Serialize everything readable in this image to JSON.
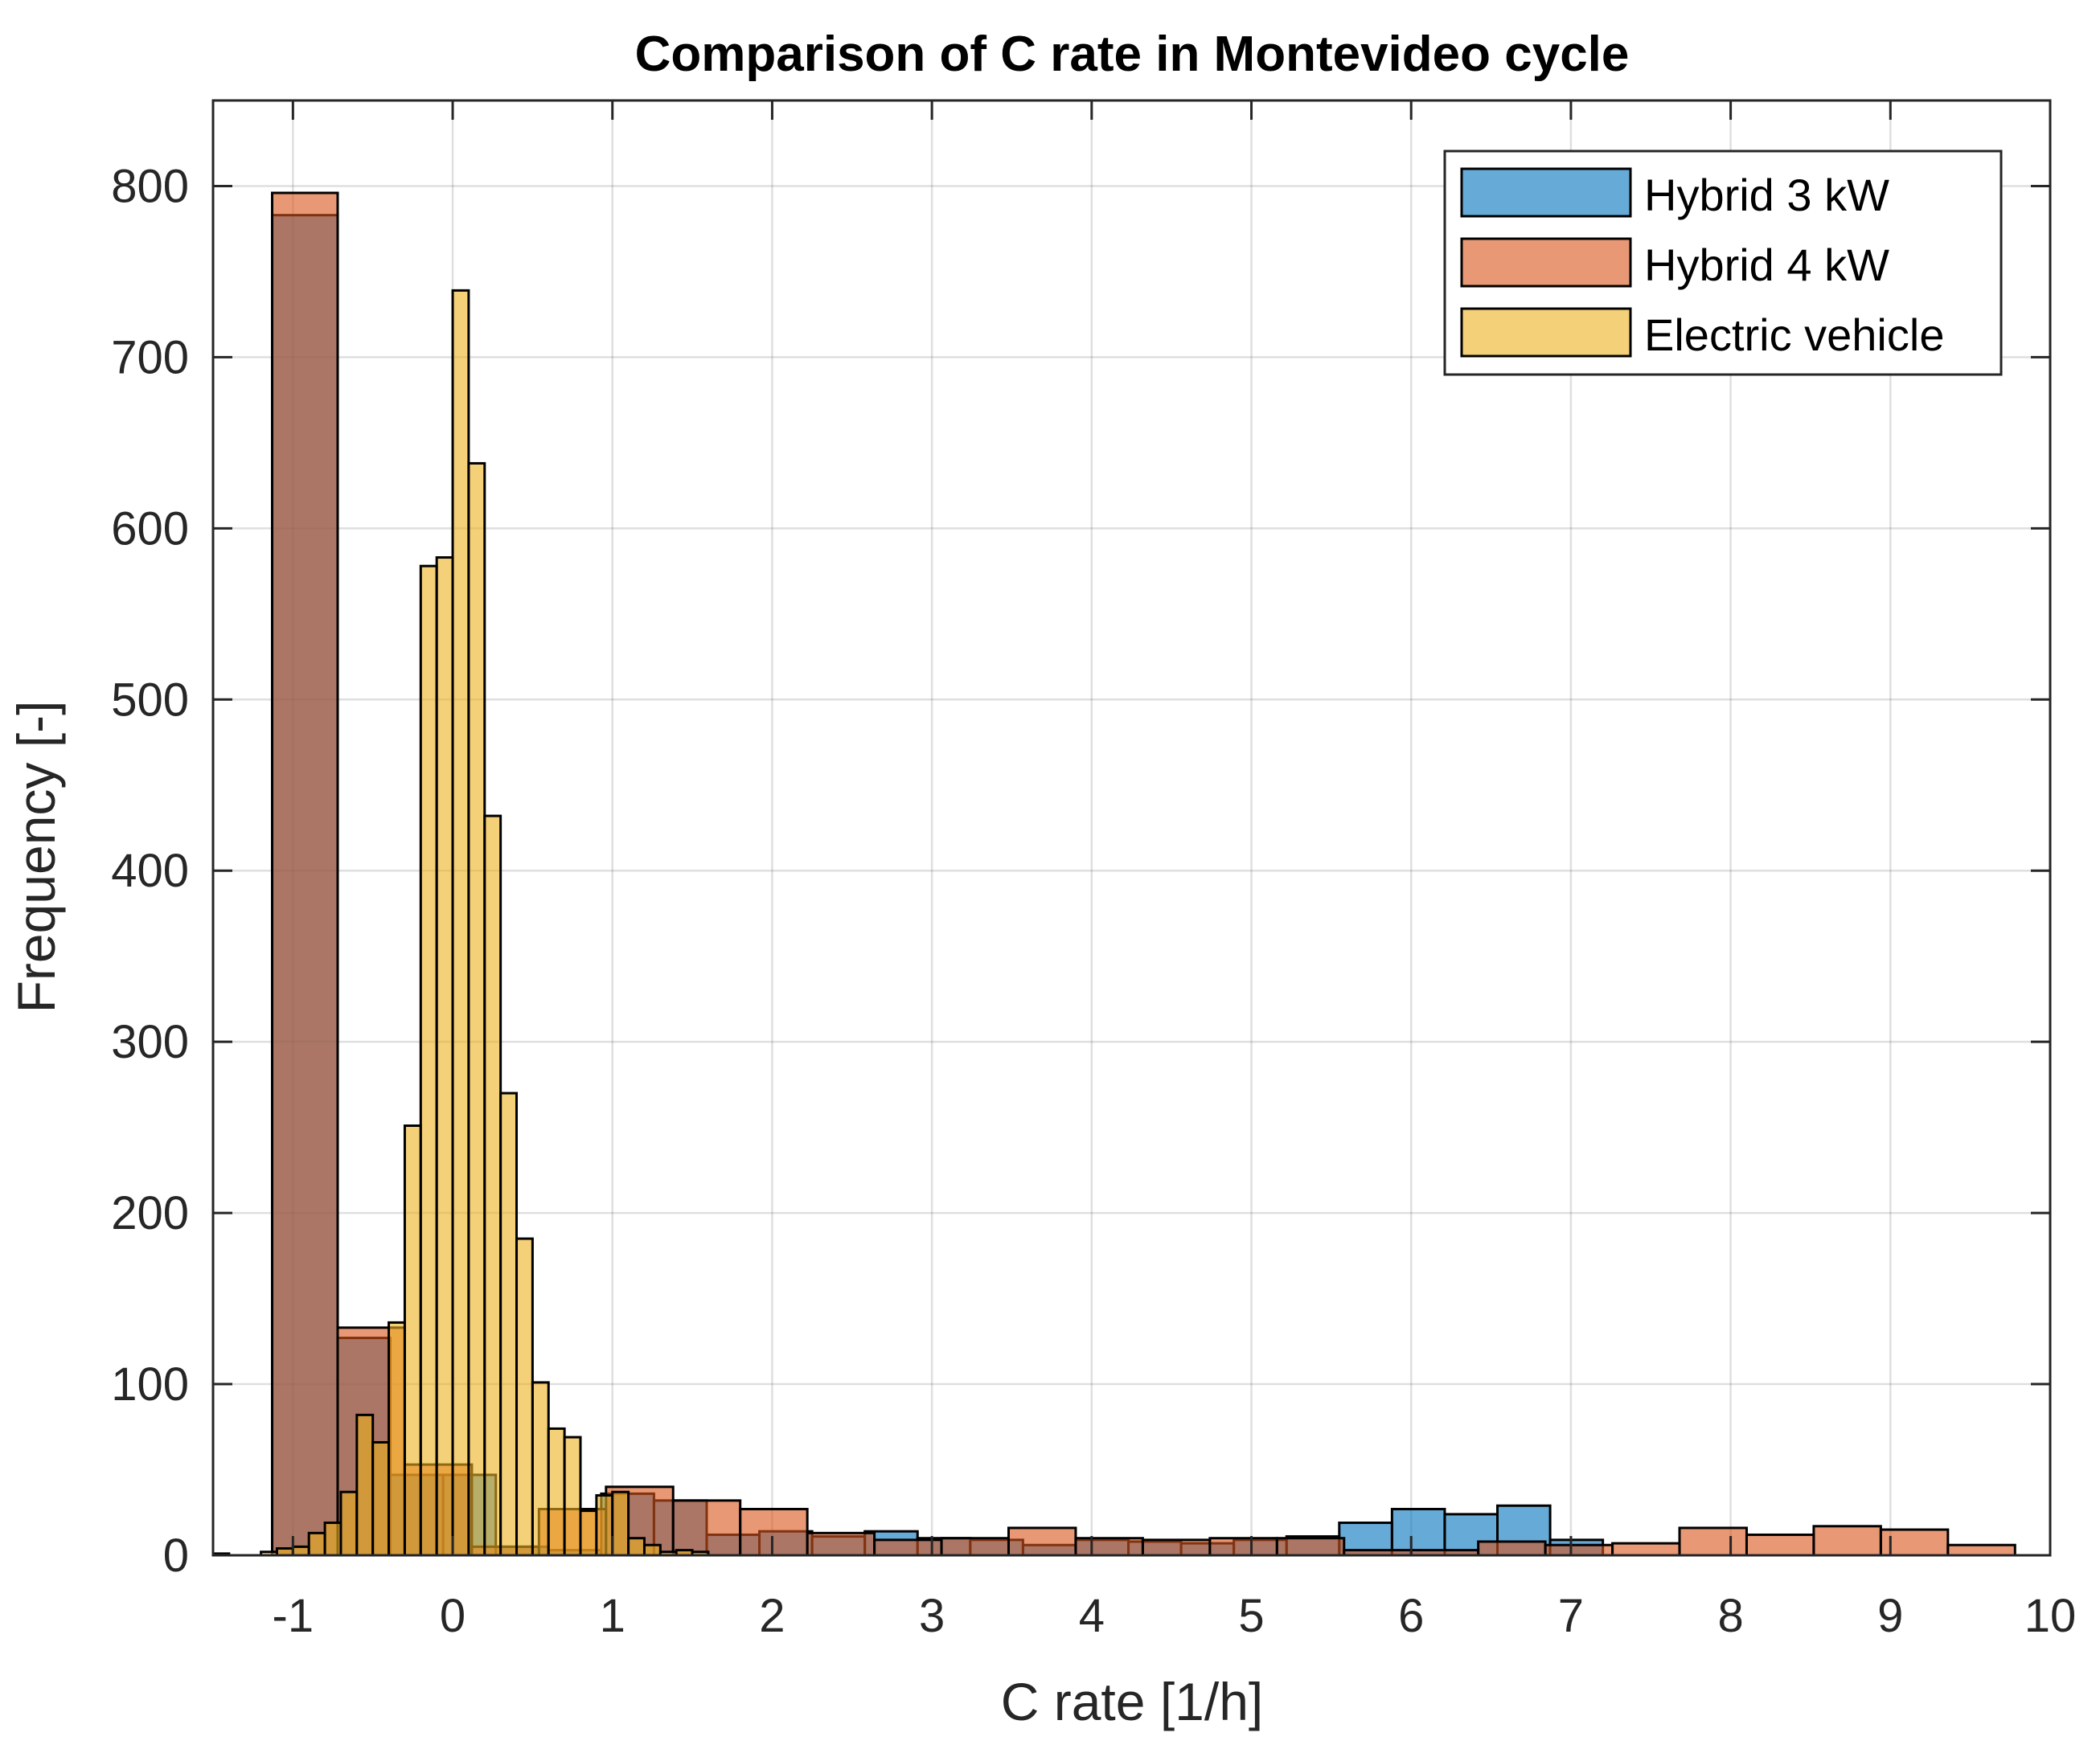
{
  "chart_data": {
    "type": "bar",
    "title": "Comparison of C rate in Montevideo cycle",
    "xlabel": "C rate [1/h]",
    "ylabel": "Frequency [-]",
    "xlim": [
      -1.5,
      10
    ],
    "ylim": [
      0,
      850
    ],
    "xticks": [
      -1,
      0,
      1,
      2,
      3,
      4,
      5,
      6,
      7,
      8,
      9,
      10
    ],
    "yticks": [
      0,
      100,
      200,
      300,
      400,
      500,
      600,
      700,
      800
    ],
    "grid": true,
    "legend_position": "top-right",
    "series": [
      {
        "name": "Hybrid 3 kW",
        "color": "#0072BD",
        "bins": [
          {
            "x0": -1.13,
            "x1": -0.72,
            "value": 783
          },
          {
            "x0": -0.72,
            "x1": -0.39,
            "value": 127
          },
          {
            "x0": -0.39,
            "x1": -0.06,
            "value": 47
          },
          {
            "x0": -0.06,
            "x1": 0.27,
            "value": 47
          },
          {
            "x0": 0.27,
            "x1": 0.6,
            "value": 5
          },
          {
            "x0": 0.6,
            "x1": 0.93,
            "value": 3
          },
          {
            "x0": 0.93,
            "x1": 1.26,
            "value": 36
          },
          {
            "x0": 1.26,
            "x1": 1.59,
            "value": 32
          },
          {
            "x0": 1.59,
            "x1": 1.92,
            "value": 12
          },
          {
            "x0": 1.92,
            "x1": 2.25,
            "value": 14
          },
          {
            "x0": 2.25,
            "x1": 2.58,
            "value": 11
          },
          {
            "x0": 2.58,
            "x1": 2.91,
            "value": 14
          },
          {
            "x0": 2.91,
            "x1": 3.24,
            "value": 10
          },
          {
            "x0": 3.24,
            "x1": 3.57,
            "value": 9
          },
          {
            "x0": 3.57,
            "x1": 3.9,
            "value": 6
          },
          {
            "x0": 3.9,
            "x1": 4.23,
            "value": 9
          },
          {
            "x0": 4.23,
            "x1": 4.56,
            "value": 8
          },
          {
            "x0": 4.56,
            "x1": 4.89,
            "value": 7
          },
          {
            "x0": 4.89,
            "x1": 5.22,
            "value": 9
          },
          {
            "x0": 5.22,
            "x1": 5.55,
            "value": 11
          },
          {
            "x0": 5.55,
            "x1": 5.88,
            "value": 19
          },
          {
            "x0": 5.88,
            "x1": 6.21,
            "value": 27
          },
          {
            "x0": 6.21,
            "x1": 6.54,
            "value": 24
          },
          {
            "x0": 6.54,
            "x1": 6.87,
            "value": 29
          },
          {
            "x0": 6.87,
            "x1": 7.2,
            "value": 9
          }
        ]
      },
      {
        "name": "Hybrid 4 kW",
        "color": "#D95319",
        "bins": [
          {
            "x0": -1.13,
            "x1": -0.72,
            "value": 796
          },
          {
            "x0": -0.72,
            "x1": -0.3,
            "value": 133
          },
          {
            "x0": -0.3,
            "x1": 0.12,
            "value": 53
          },
          {
            "x0": 0.12,
            "x1": 0.54,
            "value": 5
          },
          {
            "x0": 0.54,
            "x1": 0.96,
            "value": 27
          },
          {
            "x0": 0.96,
            "x1": 1.38,
            "value": 40
          },
          {
            "x0": 1.38,
            "x1": 1.8,
            "value": 32
          },
          {
            "x0": 1.8,
            "x1": 2.22,
            "value": 27
          },
          {
            "x0": 2.22,
            "x1": 2.64,
            "value": 13
          },
          {
            "x0": 2.64,
            "x1": 3.06,
            "value": 9
          },
          {
            "x0": 3.06,
            "x1": 3.48,
            "value": 10
          },
          {
            "x0": 3.48,
            "x1": 3.9,
            "value": 16
          },
          {
            "x0": 3.9,
            "x1": 4.32,
            "value": 10
          },
          {
            "x0": 4.32,
            "x1": 4.74,
            "value": 9
          },
          {
            "x0": 4.74,
            "x1": 5.16,
            "value": 10
          },
          {
            "x0": 5.16,
            "x1": 5.58,
            "value": 10
          },
          {
            "x0": 5.58,
            "x1": 6.0,
            "value": 3
          },
          {
            "x0": 6.0,
            "x1": 6.42,
            "value": 3
          },
          {
            "x0": 6.42,
            "x1": 6.84,
            "value": 8
          },
          {
            "x0": 6.84,
            "x1": 7.26,
            "value": 6
          },
          {
            "x0": 7.26,
            "x1": 7.68,
            "value": 7
          },
          {
            "x0": 7.68,
            "x1": 8.1,
            "value": 16
          },
          {
            "x0": 8.1,
            "x1": 8.52,
            "value": 12
          },
          {
            "x0": 8.52,
            "x1": 8.94,
            "value": 17
          },
          {
            "x0": 8.94,
            "x1": 9.36,
            "value": 15
          },
          {
            "x0": 9.36,
            "x1": 9.78,
            "value": 6
          }
        ]
      },
      {
        "name": "Electric vehicle",
        "color": "#EDB120",
        "bins": [
          {
            "x0": -1.5,
            "x1": -1.4,
            "value": 1
          },
          {
            "x0": -1.4,
            "x1": -1.3,
            "value": 0
          },
          {
            "x0": -1.3,
            "x1": -1.2,
            "value": 0
          },
          {
            "x0": -1.2,
            "x1": -1.1,
            "value": 2
          },
          {
            "x0": -1.1,
            "x1": -1.0,
            "value": 4
          },
          {
            "x0": -1.0,
            "x1": -0.9,
            "value": 5
          },
          {
            "x0": -0.9,
            "x1": -0.8,
            "value": 13
          },
          {
            "x0": -0.8,
            "x1": -0.7,
            "value": 19
          },
          {
            "x0": -0.7,
            "x1": -0.6,
            "value": 37
          },
          {
            "x0": -0.6,
            "x1": -0.5,
            "value": 82
          },
          {
            "x0": -0.5,
            "x1": -0.4,
            "value": 66
          },
          {
            "x0": -0.4,
            "x1": -0.3,
            "value": 136
          },
          {
            "x0": -0.3,
            "x1": -0.2,
            "value": 251
          },
          {
            "x0": -0.2,
            "x1": -0.1,
            "value": 578
          },
          {
            "x0": -0.1,
            "x1": 0.0,
            "value": 583
          },
          {
            "x0": 0.0,
            "x1": 0.1,
            "value": 739
          },
          {
            "x0": 0.1,
            "x1": 0.2,
            "value": 638
          },
          {
            "x0": 0.2,
            "x1": 0.3,
            "value": 432
          },
          {
            "x0": 0.3,
            "x1": 0.4,
            "value": 270
          },
          {
            "x0": 0.4,
            "x1": 0.5,
            "value": 185
          },
          {
            "x0": 0.5,
            "x1": 0.6,
            "value": 101
          },
          {
            "x0": 0.6,
            "x1": 0.7,
            "value": 74
          },
          {
            "x0": 0.7,
            "x1": 0.8,
            "value": 69
          },
          {
            "x0": 0.8,
            "x1": 0.9,
            "value": 26
          },
          {
            "x0": 0.9,
            "x1": 1.0,
            "value": 35
          },
          {
            "x0": 1.0,
            "x1": 1.1,
            "value": 37
          },
          {
            "x0": 1.1,
            "x1": 1.2,
            "value": 10
          },
          {
            "x0": 1.2,
            "x1": 1.3,
            "value": 6
          },
          {
            "x0": 1.3,
            "x1": 1.4,
            "value": 2
          },
          {
            "x0": 1.4,
            "x1": 1.5,
            "value": 3
          },
          {
            "x0": 1.5,
            "x1": 1.6,
            "value": 2
          }
        ]
      }
    ]
  }
}
